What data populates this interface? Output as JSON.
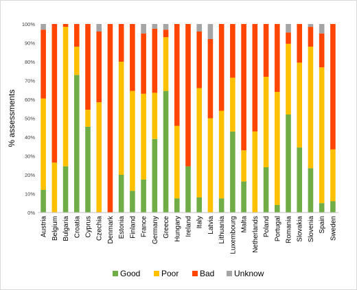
{
  "chart_data": {
    "type": "bar",
    "stacked": true,
    "normalized": true,
    "ylabel": "% assessments",
    "xlabel": "",
    "ylim": [
      0,
      100
    ],
    "yticks": [
      "0%",
      "10%",
      "20%",
      "30%",
      "40%",
      "50%",
      "60%",
      "70%",
      "80%",
      "90%",
      "100%"
    ],
    "grid": false,
    "legend_position": "bottom",
    "categories": [
      "Austria",
      "Belgium",
      "Bulgaria",
      "Croatia",
      "Cyprus",
      "Czechia",
      "Denmark",
      "Estonia",
      "Finland",
      "France",
      "Germany",
      "Greece",
      "Hungary",
      "Ireland",
      "Italy",
      "Latvia",
      "Lithuania",
      "Luxembourg",
      "Malta",
      "Netherlands",
      "Poland",
      "Portugal",
      "Romania",
      "Slovakia",
      "Slovenia",
      "Spain",
      "Sweden"
    ],
    "series": [
      {
        "name": "Good",
        "color": "#70ad47",
        "values": [
          12,
          0,
          24.5,
          73,
          45.5,
          0,
          0,
          20,
          11.5,
          17.5,
          39,
          64.5,
          7.5,
          24.5,
          8,
          0,
          7.5,
          43,
          16.5,
          0,
          24,
          4,
          52,
          34.5,
          23.5,
          5,
          6
        ]
      },
      {
        "name": "Poor",
        "color": "#ffc000",
        "values": [
          48.5,
          26.5,
          74,
          15,
          9,
          58.5,
          0,
          60,
          53,
          45.5,
          24.5,
          28.5,
          38.5,
          0,
          58,
          50,
          46.5,
          28.5,
          16.5,
          43,
          48,
          60,
          37.5,
          45,
          64.5,
          72,
          27.5
        ]
      },
      {
        "name": "Bad",
        "color": "#ff4500",
        "values": [
          36.5,
          73.5,
          1.5,
          12,
          45.5,
          37.5,
          100,
          20,
          35.5,
          32,
          34,
          4,
          54,
          75.5,
          30,
          42,
          46,
          28.5,
          67,
          57,
          28,
          36,
          6,
          20.5,
          10.5,
          18,
          66.5
        ]
      },
      {
        "name": "Unknow",
        "color": "#a5a5a5",
        "values": [
          3,
          0,
          0,
          0,
          0,
          4,
          0,
          0,
          0,
          5,
          2.5,
          3,
          0,
          0,
          4,
          8,
          0,
          0,
          0,
          0,
          0,
          0,
          4.5,
          0,
          1.5,
          5,
          0
        ]
      }
    ]
  }
}
